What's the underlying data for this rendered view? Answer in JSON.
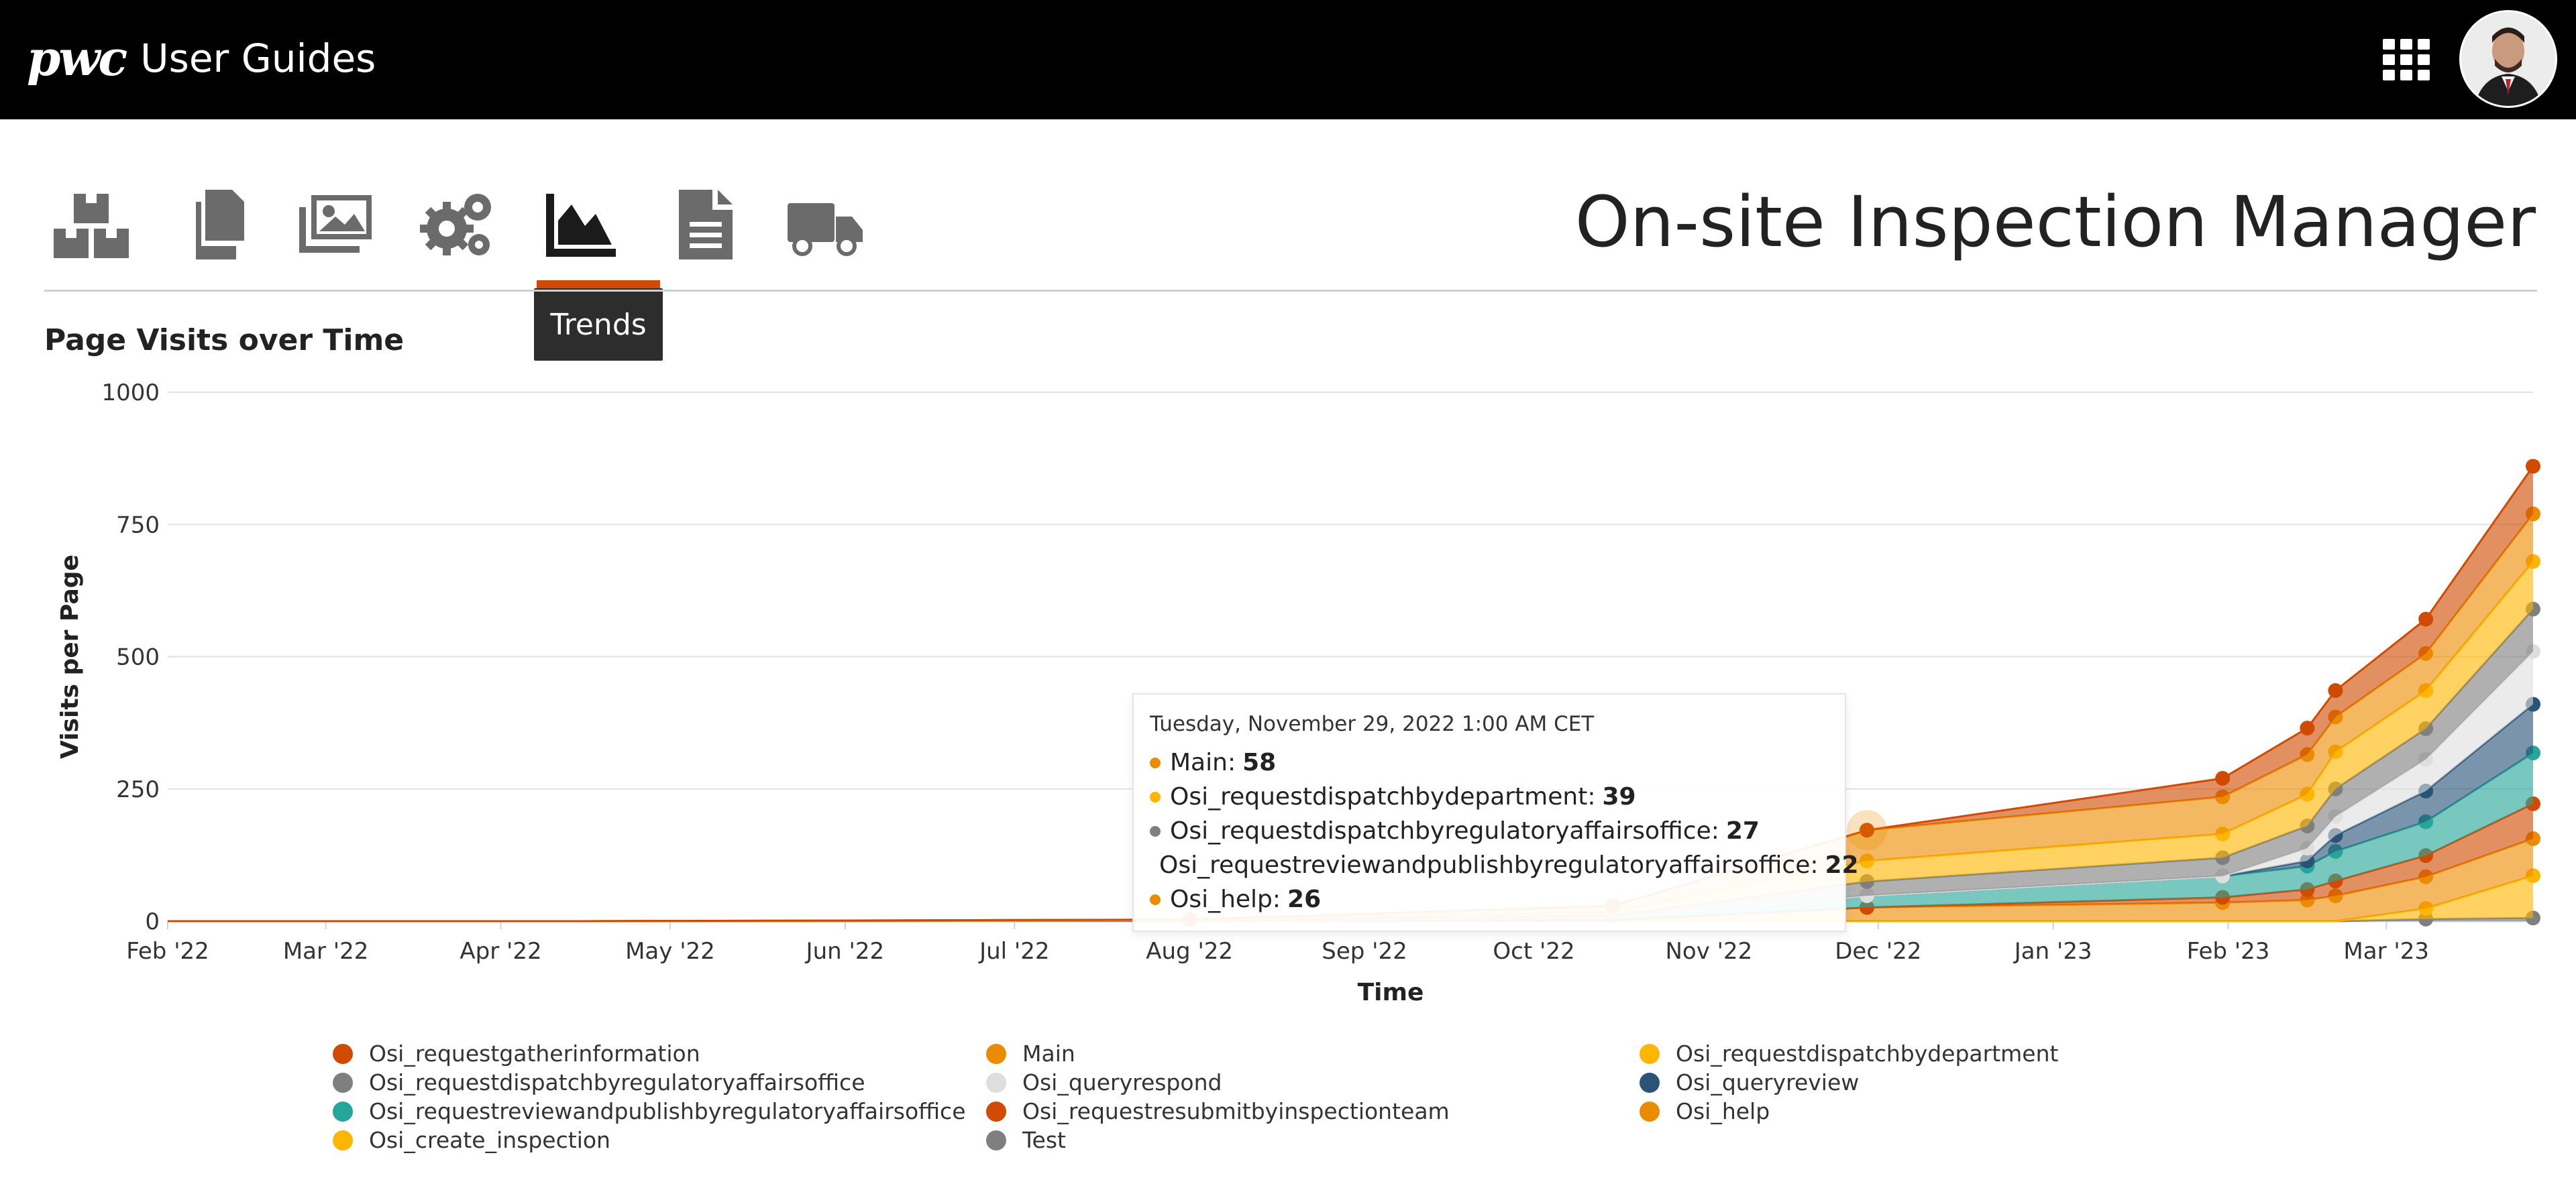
{
  "header": {
    "logo_text": "pwc",
    "title": "User Guides",
    "apps_icon": "grid-icon",
    "avatar_icon": "user-avatar"
  },
  "toolbar": {
    "items": [
      {
        "name": "packages",
        "icon": "boxes-icon"
      },
      {
        "name": "documents",
        "icon": "copy-icon"
      },
      {
        "name": "images",
        "icon": "images-icon"
      },
      {
        "name": "settings",
        "icon": "gears-icon"
      },
      {
        "name": "trends",
        "icon": "area-chart-icon",
        "active": true
      },
      {
        "name": "report",
        "icon": "file-text-icon"
      },
      {
        "name": "delivery",
        "icon": "truck-icon"
      }
    ],
    "active_tooltip": "Trends",
    "active_color": "#d04a02"
  },
  "app_title": "On-site Inspection Manager",
  "chart_data": {
    "type": "area",
    "title": "Page Visits over Time",
    "xlabel": "Time",
    "ylabel": "Visits per Page",
    "ylim": [
      0,
      1000
    ],
    "yticks": [
      "0",
      "250",
      "500",
      "750",
      "1000"
    ],
    "xticks": [
      "Feb '22",
      "Mar '22",
      "Apr '22",
      "May '22",
      "Jun '22",
      "Jul '22",
      "Aug '22",
      "Sep '22",
      "Oct '22",
      "Nov '22",
      "Dec '22",
      "Jan '23",
      "Feb '23",
      "Mar '23"
    ],
    "stacked": true,
    "grid": true,
    "legend_position": "bottom",
    "x": [
      "2022-02-01",
      "2022-04-15",
      "2022-08-01",
      "2022-10-15",
      "2022-11-29",
      "2023-01-31",
      "2023-02-15",
      "2023-02-20",
      "2023-03-08",
      "2023-03-27"
    ],
    "series": [
      {
        "name": "Test",
        "color": "#7f7f7f",
        "values": [
          0,
          0,
          0,
          0,
          0,
          0,
          0,
          0,
          4,
          6
        ]
      },
      {
        "name": "Osi_create_inspection",
        "color": "#ffb600",
        "values": [
          0,
          0,
          0,
          0,
          0,
          0,
          0,
          0,
          20,
          80
        ]
      },
      {
        "name": "Osi_help",
        "color": "#eb8c00",
        "values": [
          0,
          0,
          1,
          2,
          26,
          35,
          40,
          48,
          60,
          70
        ]
      },
      {
        "name": "Osi_requestresubmitbyinspectionteam",
        "color": "#d04a02",
        "values": [
          0,
          0,
          0,
          0,
          0,
          10,
          20,
          28,
          40,
          66
        ]
      },
      {
        "name": "Osi_requestreviewandpublishbyregulatoryaffairsoffice",
        "color": "#26a69a",
        "values": [
          0,
          0,
          0,
          5,
          22,
          40,
          44,
          56,
          64,
          96
        ]
      },
      {
        "name": "Osi_queryreview",
        "color": "#295477",
        "values": [
          0,
          0,
          0,
          0,
          0,
          0,
          10,
          30,
          58,
          92
        ]
      },
      {
        "name": "Osi_queryrespond",
        "color": "#dedede",
        "values": [
          0,
          0,
          0,
          0,
          0,
          0,
          24,
          36,
          60,
          100
        ]
      },
      {
        "name": "Osi_requestdispatchbyregulatoryaffairsoffice",
        "color": "#7f7f7f",
        "values": [
          0,
          0,
          0,
          4,
          27,
          35,
          42,
          52,
          58,
          80
        ]
      },
      {
        "name": "Osi_requestdispatchbydepartment",
        "color": "#ffb600",
        "values": [
          0,
          0,
          1,
          6,
          39,
          45,
          60,
          70,
          72,
          90
        ]
      },
      {
        "name": "Main",
        "color": "#eb8c00",
        "values": [
          0,
          0,
          1,
          12,
          58,
          70,
          75,
          66,
          70,
          90
        ]
      },
      {
        "name": "Osi_requestgatherinformation",
        "color": "#d04a02",
        "values": [
          0,
          0,
          0,
          0,
          0,
          35,
          50,
          50,
          65,
          90
        ]
      }
    ]
  },
  "tooltip": {
    "date": "Tuesday, November 29, 2022 1:00 AM CET",
    "rows": [
      {
        "label": "Main:",
        "value": "58",
        "color": "#eb8c00"
      },
      {
        "label": "Osi_requestdispatchbydepartment:",
        "value": "39",
        "color": "#ffb600"
      },
      {
        "label": "Osi_requestdispatchbyregulatoryaffairsoffice:",
        "value": "27",
        "color": "#7f7f7f"
      },
      {
        "label": "Osi_requestreviewandpublishbyregulatoryaffairsoffice:",
        "value": "22",
        "color": "#26a69a"
      },
      {
        "label": "Osi_help:",
        "value": "26",
        "color": "#eb8c00"
      }
    ]
  },
  "legend": [
    {
      "label": "Osi_requestgatherinformation",
      "color": "#d04a02"
    },
    {
      "label": "Main",
      "color": "#eb8c00"
    },
    {
      "label": "Osi_requestdispatchbydepartment",
      "color": "#ffb600"
    },
    {
      "label": "Osi_requestdispatchbyregulatoryaffairsoffice",
      "color": "#7f7f7f"
    },
    {
      "label": "Osi_queryrespond",
      "color": "#dedede"
    },
    {
      "label": "Osi_queryreview",
      "color": "#295477"
    },
    {
      "label": "Osi_requestreviewandpublishbyregulatoryaffairsoffice",
      "color": "#26a69a"
    },
    {
      "label": "Osi_requestresubmitbyinspectionteam",
      "color": "#d04a02"
    },
    {
      "label": "Osi_help",
      "color": "#eb8c00"
    },
    {
      "label": "Osi_create_inspection",
      "color": "#ffb600"
    },
    {
      "label": "Test",
      "color": "#7f7f7f"
    }
  ]
}
